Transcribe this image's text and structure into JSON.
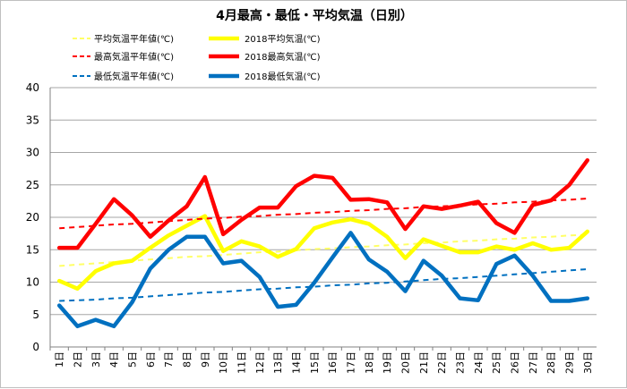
{
  "chart_data": {
    "type": "line",
    "title": "4月最高・最低・平均気温（日別）",
    "x_unit": "日",
    "categories": [
      "1",
      "2",
      "3",
      "4",
      "5",
      "6",
      "7",
      "8",
      "9",
      "10",
      "11",
      "12",
      "13",
      "14",
      "15",
      "16",
      "17",
      "18",
      "19",
      "20",
      "21",
      "22",
      "23",
      "24",
      "25",
      "26",
      "27",
      "28",
      "29",
      "30"
    ],
    "ylim": [
      0,
      40
    ],
    "yticks": [
      0,
      5,
      10,
      15,
      20,
      25,
      30,
      35,
      40
    ],
    "grid": true,
    "legend_position": "top",
    "series": [
      {
        "name": "平均気温平年値(℃)",
        "color": "#ffff66",
        "dashed": true,
        "values": [
          12.5,
          12.7,
          12.9,
          13.1,
          13.3,
          13.5,
          13.7,
          13.9,
          14.0,
          14.2,
          14.4,
          14.6,
          14.7,
          14.9,
          15.1,
          15.2,
          15.4,
          15.5,
          15.7,
          15.8,
          16.0,
          16.1,
          16.3,
          16.4,
          16.6,
          16.7,
          16.9,
          17.0,
          17.2,
          17.3
        ]
      },
      {
        "name": "2018平均気温(℃)",
        "color": "#ffff00",
        "dashed": false,
        "values": [
          10.2,
          9.0,
          11.7,
          12.9,
          13.3,
          15.3,
          17.2,
          18.7,
          20.2,
          14.8,
          16.3,
          15.5,
          13.9,
          15.1,
          18.3,
          19.2,
          19.7,
          19.0,
          17.0,
          13.7,
          16.6,
          15.6,
          14.6,
          14.6,
          15.5,
          15.0,
          16.0,
          15.0,
          15.3,
          17.8
        ]
      },
      {
        "name": "最高気温平年値(℃)",
        "color": "#ff0000",
        "dashed": true,
        "values": [
          18.3,
          18.5,
          18.7,
          18.9,
          19.0,
          19.2,
          19.4,
          19.6,
          19.8,
          19.9,
          20.1,
          20.2,
          20.4,
          20.5,
          20.7,
          20.8,
          21.0,
          21.1,
          21.3,
          21.4,
          21.6,
          21.7,
          21.8,
          22.0,
          22.1,
          22.3,
          22.4,
          22.6,
          22.7,
          22.9
        ]
      },
      {
        "name": "2018最高気温(℃)",
        "color": "#ff0000",
        "dashed": false,
        "values": [
          15.3,
          15.3,
          19.0,
          22.8,
          20.3,
          17.0,
          19.5,
          21.7,
          26.2,
          17.4,
          19.6,
          21.5,
          21.5,
          24.8,
          26.4,
          26.1,
          22.7,
          22.8,
          22.3,
          18.2,
          21.7,
          21.3,
          21.8,
          22.4,
          19.1,
          17.6,
          21.9,
          22.6,
          25.0,
          28.8
        ]
      },
      {
        "name": "最低気温平年値(℃)",
        "color": "#0070c0",
        "dashed": true,
        "values": [
          7.1,
          7.2,
          7.3,
          7.5,
          7.6,
          7.8,
          8.0,
          8.2,
          8.4,
          8.5,
          8.7,
          8.9,
          9.0,
          9.2,
          9.3,
          9.5,
          9.6,
          9.8,
          9.9,
          10.1,
          10.3,
          10.5,
          10.6,
          10.8,
          11.0,
          11.2,
          11.4,
          11.6,
          11.8,
          12.0
        ]
      },
      {
        "name": "2018最低気温(℃)",
        "color": "#0070c0",
        "dashed": false,
        "values": [
          6.4,
          3.2,
          4.2,
          3.2,
          6.9,
          12.1,
          15.0,
          17.0,
          17.0,
          12.9,
          13.3,
          10.8,
          6.2,
          6.5,
          9.9,
          13.8,
          17.6,
          13.5,
          11.6,
          8.6,
          13.3,
          11.0,
          7.5,
          7.2,
          12.8,
          14.1,
          11.0,
          7.1,
          7.1,
          7.5
        ]
      }
    ]
  }
}
